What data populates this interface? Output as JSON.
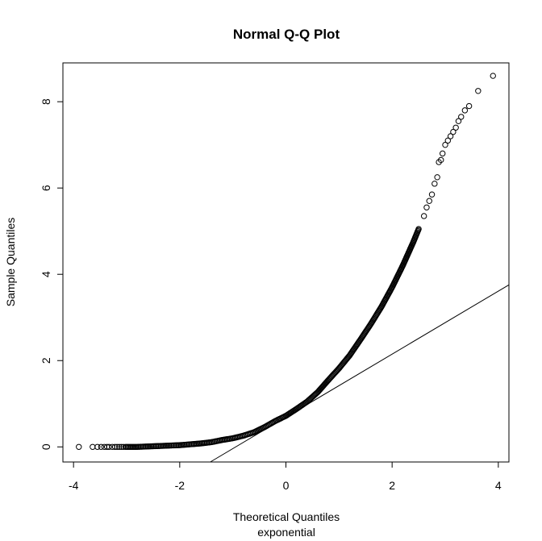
{
  "chart_data": {
    "type": "scatter",
    "title": "Normal Q-Q Plot",
    "xlabel": "Theoretical Quantiles",
    "xlabel_sub": "exponential",
    "ylabel": "Sample Quantiles",
    "xlim": [
      -4.2,
      4.2
    ],
    "ylim": [
      -0.35,
      8.9
    ],
    "xticks": [
      -4,
      -2,
      0,
      2,
      4
    ],
    "yticks": [
      0,
      2,
      4,
      6,
      8
    ],
    "grid": false,
    "marker": "open-circle",
    "reference_line": {
      "intercept": 0.69,
      "slope": 0.73,
      "label": "qqline"
    },
    "points": [
      [
        -3.9,
        0.0
      ],
      [
        -3.64,
        0.0
      ],
      [
        -3.55,
        0.0
      ],
      [
        -3.48,
        0.0
      ],
      [
        -3.42,
        0.0
      ],
      [
        -3.37,
        0.0
      ],
      [
        -3.33,
        0.0
      ],
      [
        -3.27,
        0.0
      ],
      [
        -3.22,
        0.0
      ],
      [
        -3.18,
        0.0
      ],
      [
        -3.14,
        0.0
      ],
      [
        -3.1,
        0.0
      ],
      [
        -3.06,
        0.0
      ],
      [
        -3.02,
        0.0
      ],
      [
        -3.0,
        0.0
      ],
      [
        -2.8,
        0.0
      ],
      [
        -2.6,
        0.01
      ],
      [
        -2.4,
        0.02
      ],
      [
        -2.2,
        0.03
      ],
      [
        -2.0,
        0.04
      ],
      [
        -1.8,
        0.06
      ],
      [
        -1.6,
        0.08
      ],
      [
        -1.4,
        0.11
      ],
      [
        -1.2,
        0.16
      ],
      [
        -1.0,
        0.2
      ],
      [
        -0.8,
        0.26
      ],
      [
        -0.6,
        0.34
      ],
      [
        -0.4,
        0.46
      ],
      [
        -0.2,
        0.6
      ],
      [
        0.0,
        0.72
      ],
      [
        0.2,
        0.88
      ],
      [
        0.4,
        1.05
      ],
      [
        0.6,
        1.27
      ],
      [
        0.8,
        1.55
      ],
      [
        1.0,
        1.82
      ],
      [
        1.2,
        2.12
      ],
      [
        1.4,
        2.48
      ],
      [
        1.6,
        2.85
      ],
      [
        1.8,
        3.25
      ],
      [
        2.0,
        3.7
      ],
      [
        2.2,
        4.2
      ],
      [
        2.4,
        4.75
      ],
      [
        2.5,
        5.05
      ],
      [
        2.6,
        5.35
      ],
      [
        2.65,
        5.55
      ],
      [
        2.7,
        5.7
      ],
      [
        2.75,
        5.85
      ],
      [
        2.8,
        6.1
      ],
      [
        2.85,
        6.25
      ],
      [
        2.88,
        6.6
      ],
      [
        2.92,
        6.65
      ],
      [
        2.95,
        6.8
      ],
      [
        3.0,
        7.0
      ],
      [
        3.05,
        7.1
      ],
      [
        3.1,
        7.2
      ],
      [
        3.15,
        7.3
      ],
      [
        3.2,
        7.4
      ],
      [
        3.25,
        7.55
      ],
      [
        3.3,
        7.65
      ],
      [
        3.37,
        7.8
      ],
      [
        3.45,
        7.9
      ],
      [
        3.62,
        8.25
      ],
      [
        3.9,
        8.6
      ]
    ]
  }
}
